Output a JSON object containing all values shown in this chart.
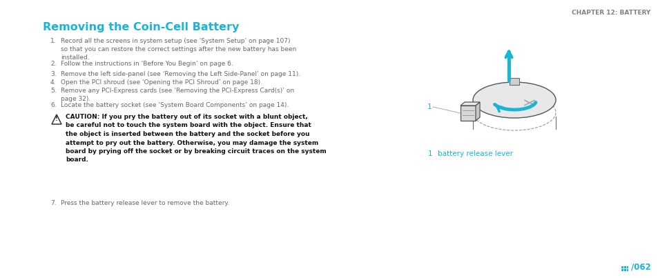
{
  "title": "Removing the Coin-Cell Battery",
  "title_color": "#1ab4d7",
  "title_fontsize": 11.5,
  "chapter_header": "CHAPTER 12: BATTERY",
  "chapter_color": "#808080",
  "chapter_fontsize": 6.5,
  "body_color": "#666666",
  "body_fontsize": 6.5,
  "caution_fontsize": 6.5,
  "label_color": "#1ab4d7",
  "page_number": "062",
  "page_color": "#1ab4d7",
  "background": "#ffffff",
  "steps": [
    "Record all the screens in system setup (see ‘System Setup’ on page 107)\nso that you can restore the correct settings after the new battery has been\ninstalled.",
    "Follow the instructions in ‘Before You Begin’ on page 6.",
    "Remove the left side-panel (see ‘Removing the Left Side-Panel’ on page 11).",
    "Open the PCI shroud (see ‘Opening the PCI Shroud’ on page 18).",
    "Remove any PCI-Express cards (see ‘Removing the PCI-Express Card(s)’ on\npage 32).",
    "Locate the battery socket (see ‘System Board Components’ on page 14).",
    "Press the battery release lever to remove the battery."
  ],
  "caution_lines": [
    "CAUTION: If you pry the battery out of its socket with a blunt object,",
    "be careful not to touch the system board with the object. Ensure that",
    "the object is inserted between the battery and the socket before you",
    "attempt to pry out the battery. Otherwise, you may damage the system",
    "board by prying off the socket or by breaking circuit traces on the system",
    "board."
  ],
  "label_number": "1",
  "label_text": "battery release lever"
}
